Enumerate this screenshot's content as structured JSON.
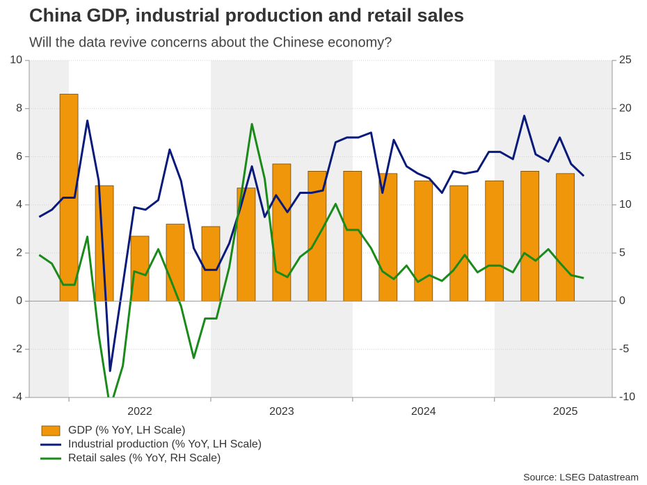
{
  "chart_data": {
    "type": "combo",
    "title": "China GDP, industrial production and retail sales",
    "subtitle": "Will the data revive concerns about the Chinese economy?",
    "source": "Source: LSEG Datastream",
    "xlim": [
      2021.72,
      2025.83
    ],
    "xticks": [
      2022,
      2023,
      2024,
      2025
    ],
    "ylim": [
      -4,
      10
    ],
    "yticks": [
      -4,
      -2,
      0,
      2,
      4,
      6,
      8,
      10
    ],
    "y2lim": [
      -10,
      25
    ],
    "y2ticks": [
      -10,
      -5,
      0,
      5,
      10,
      15,
      20,
      25
    ],
    "grid": true,
    "shaded_alternate_years": true,
    "legend": "bottom-left",
    "series": [
      {
        "name": "GDP (% YoY, LH Scale)",
        "type": "bar",
        "color": "#f0960a",
        "x": [
          2022.0,
          2022.25,
          2022.5,
          2022.75,
          2023.0,
          2023.25,
          2023.5,
          2023.75,
          2024.0,
          2024.25,
          2024.5,
          2024.75,
          2025.0,
          2025.25,
          2025.5
        ],
        "values": [
          8.6,
          4.8,
          2.7,
          3.2,
          3.1,
          4.7,
          5.7,
          5.4,
          5.4,
          5.3,
          5.0,
          4.8,
          5.0,
          5.4,
          5.3
        ]
      },
      {
        "name": "Industrial production (% YoY, LH Scale)",
        "type": "line",
        "color": "#0a1a7a",
        "x": [
          2021.79,
          2021.88,
          2021.96,
          2022.04,
          2022.13,
          2022.21,
          2022.29,
          2022.38,
          2022.46,
          2022.54,
          2022.63,
          2022.71,
          2022.79,
          2022.88,
          2022.96,
          2023.04,
          2023.13,
          2023.21,
          2023.29,
          2023.38,
          2023.46,
          2023.54,
          2023.63,
          2023.71,
          2023.79,
          2023.88,
          2023.96,
          2024.04,
          2024.13,
          2024.21,
          2024.29,
          2024.38,
          2024.46,
          2024.54,
          2024.63,
          2024.71,
          2024.79,
          2024.88,
          2024.96,
          2025.04,
          2025.13,
          2025.21,
          2025.29,
          2025.38,
          2025.46,
          2025.54,
          2025.63
        ],
        "values": [
          3.5,
          3.8,
          4.3,
          4.3,
          7.5,
          5.0,
          -2.9,
          0.7,
          3.9,
          3.8,
          4.2,
          6.3,
          5.0,
          2.2,
          1.3,
          1.3,
          2.4,
          3.9,
          5.6,
          3.5,
          4.4,
          3.7,
          4.5,
          4.5,
          4.6,
          6.6,
          6.8,
          6.8,
          7.0,
          4.5,
          6.7,
          5.6,
          5.3,
          5.1,
          4.5,
          5.4,
          5.3,
          5.4,
          6.2,
          6.2,
          5.9,
          7.7,
          6.1,
          5.8,
          6.8,
          5.7,
          5.2
        ]
      },
      {
        "name": "Retail sales (% YoY, RH Scale)",
        "type": "line",
        "axis": "y2",
        "color": "#1a8a1a",
        "x": [
          2021.79,
          2021.88,
          2021.96,
          2022.04,
          2022.13,
          2022.21,
          2022.29,
          2022.38,
          2022.46,
          2022.54,
          2022.63,
          2022.71,
          2022.79,
          2022.88,
          2022.96,
          2023.04,
          2023.13,
          2023.21,
          2023.29,
          2023.38,
          2023.46,
          2023.54,
          2023.63,
          2023.71,
          2023.79,
          2023.88,
          2023.96,
          2024.04,
          2024.13,
          2024.21,
          2024.29,
          2024.38,
          2024.46,
          2024.54,
          2024.63,
          2024.71,
          2024.79,
          2024.88,
          2024.96,
          2025.04,
          2025.13,
          2025.21,
          2025.29,
          2025.38,
          2025.46,
          2025.54,
          2025.63
        ],
        "values": [
          4.8,
          3.9,
          1.7,
          1.7,
          6.7,
          -3.5,
          -11.1,
          -6.7,
          3.1,
          2.7,
          5.4,
          2.5,
          -0.5,
          -5.9,
          -1.8,
          -1.8,
          3.5,
          10.6,
          18.4,
          12.7,
          3.1,
          2.5,
          4.6,
          5.5,
          7.6,
          10.1,
          7.4,
          7.4,
          5.5,
          3.1,
          2.3,
          3.7,
          2.0,
          2.7,
          2.1,
          3.2,
          4.8,
          3.0,
          3.7,
          3.7,
          3.0,
          5.0,
          4.2,
          5.4,
          4.0,
          2.7,
          2.4
        ]
      }
    ]
  }
}
